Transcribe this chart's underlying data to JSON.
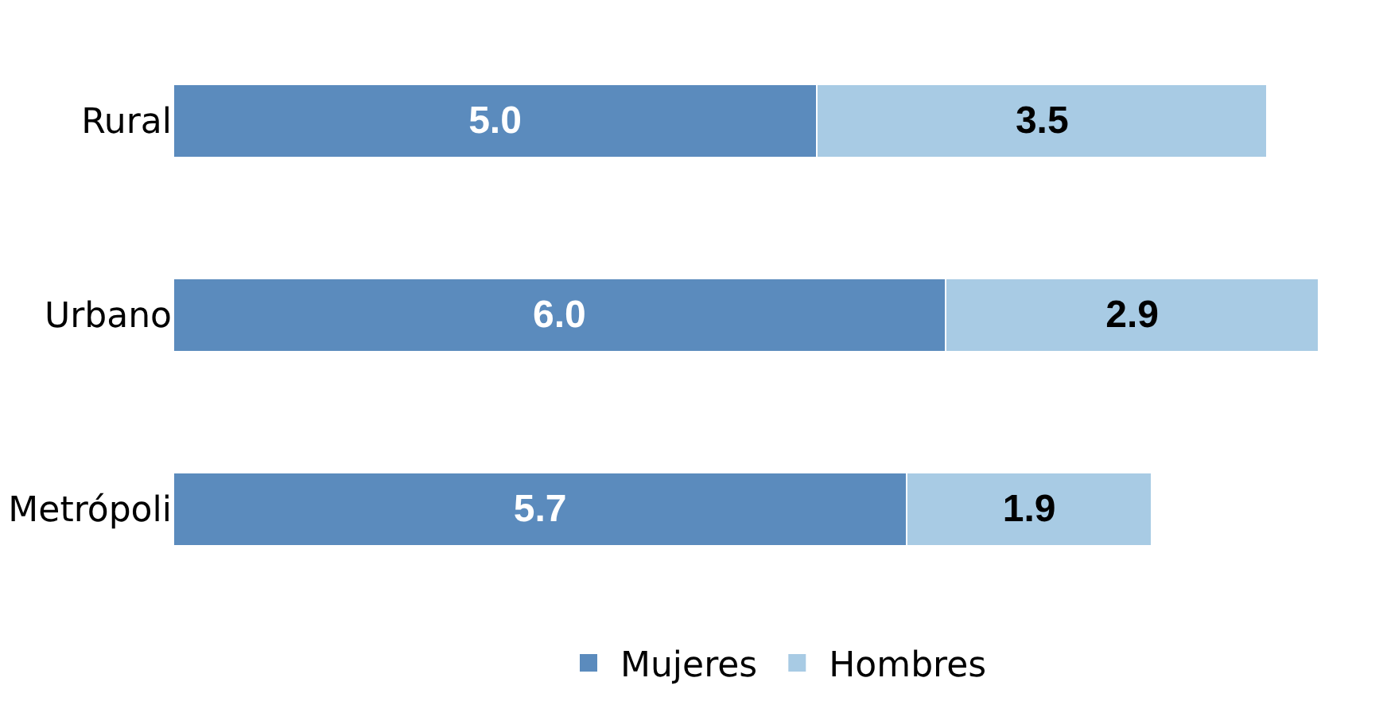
{
  "chart_data": {
    "type": "bar",
    "orientation": "horizontal",
    "stacked": true,
    "legend": "bottom",
    "categories": [
      "Rural",
      "Urbano",
      "Metrópoli"
    ],
    "series": [
      {
        "name": "Mujeres",
        "color": "#5b8bbd",
        "values": [
          5.0,
          6.0,
          5.7
        ],
        "value_labels": [
          "5.0",
          "6.0",
          "5.7"
        ]
      },
      {
        "name": "Hombres",
        "color": "#a8cbe4",
        "values": [
          3.5,
          2.9,
          1.9
        ],
        "value_labels": [
          "3.5",
          "2.9",
          "1.9"
        ]
      }
    ]
  }
}
